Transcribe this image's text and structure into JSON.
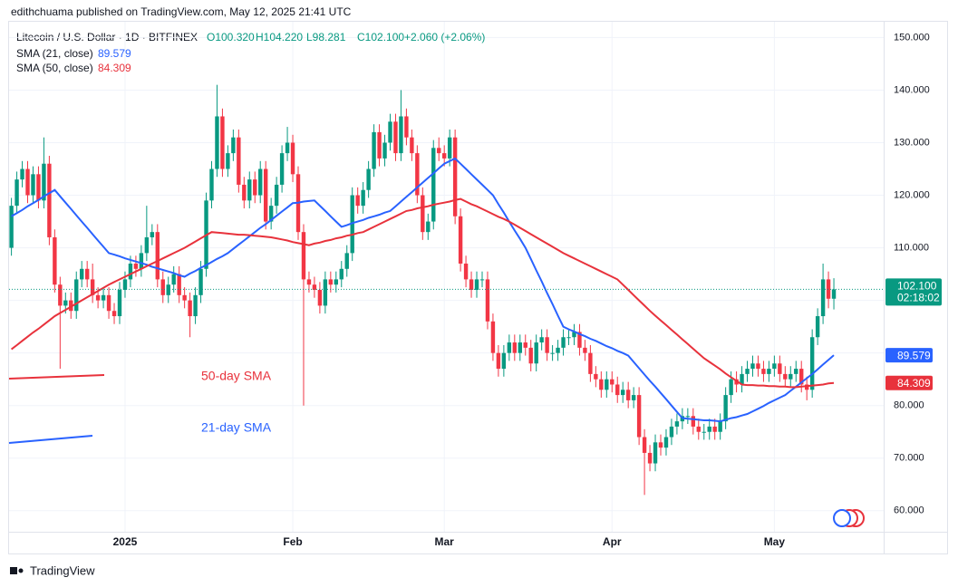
{
  "chart_data": {
    "type": "candlestick",
    "header": "edithchuama published on TradingView.com, May 12, 2025 21:41 UTC",
    "symbol": "Litecoin / U.S. Dollar · 1D · BITFINEX",
    "ohlc_labels": [
      "O100.320",
      "H104.220",
      "L98.281",
      "C102.100"
    ],
    "change": "+2.060 (+2.06%)",
    "last_price_label": "102.100",
    "countdown": "02:18:02",
    "annotations": [
      "50-day SMA",
      "21-day SMA"
    ],
    "footer": "TradingView",
    "up_color": "#089981",
    "down_color": "#f23645",
    "grid": true,
    "ylim": [
      56,
      153
    ],
    "yticks": [
      {
        "value": 150,
        "label": "150.000"
      },
      {
        "value": 140,
        "label": "140.000"
      },
      {
        "value": 130,
        "label": "130.000"
      },
      {
        "value": 120,
        "label": "120.000"
      },
      {
        "value": 110,
        "label": "110.000"
      },
      {
        "value": 100,
        "label": "100.000"
      },
      {
        "value": 90,
        "label": "90.000"
      },
      {
        "value": 80,
        "label": "80.000"
      },
      {
        "value": 70,
        "label": "70.000"
      },
      {
        "value": 60,
        "label": "60.000"
      }
    ],
    "categories": [
      null,
      null,
      null,
      null,
      null,
      null,
      null,
      null,
      null,
      null,
      null,
      null,
      null,
      null,
      null,
      null,
      null,
      null,
      null,
      null,
      null,
      "2025",
      null,
      null,
      null,
      null,
      null,
      null,
      null,
      null,
      null,
      null,
      null,
      null,
      null,
      null,
      null,
      null,
      null,
      null,
      null,
      null,
      null,
      null,
      null,
      null,
      null,
      null,
      null,
      null,
      null,
      null,
      "Feb",
      null,
      null,
      null,
      null,
      null,
      null,
      null,
      null,
      null,
      null,
      null,
      null,
      null,
      null,
      null,
      null,
      null,
      null,
      null,
      null,
      null,
      null,
      null,
      null,
      null,
      null,
      null,
      "Mar",
      null,
      null,
      null,
      null,
      null,
      null,
      null,
      null,
      null,
      null,
      null,
      null,
      null,
      null,
      null,
      null,
      null,
      null,
      null,
      null,
      null,
      null,
      null,
      null,
      null,
      null,
      null,
      null,
      null,
      null,
      "Apr",
      null,
      null,
      null,
      null,
      null,
      null,
      null,
      null,
      null,
      null,
      null,
      null,
      null,
      null,
      null,
      null,
      null,
      null,
      null,
      null,
      null,
      null,
      null,
      null,
      null,
      null,
      null,
      null,
      null,
      "May",
      null,
      null,
      null,
      null,
      null,
      null,
      null,
      null,
      null,
      null,
      null
    ],
    "candles": [
      [
        110,
        119.5,
        108.5,
        118
      ],
      [
        118,
        124.5,
        116.5,
        123
      ],
      [
        123,
        126.5,
        121.5,
        125
      ],
      [
        125,
        126.5,
        118.5,
        120
      ],
      [
        120,
        125.5,
        118.5,
        124
      ],
      [
        124,
        125.5,
        117.5,
        119
      ],
      [
        119,
        131,
        117.5,
        126
      ],
      [
        126,
        127.5,
        110.5,
        112
      ],
      [
        112,
        113.5,
        101.5,
        103
      ],
      [
        103,
        104.5,
        87,
        99
      ],
      [
        99,
        101.5,
        97.5,
        100
      ],
      [
        100,
        101.5,
        96.5,
        98
      ],
      [
        98,
        105.5,
        96.5,
        104
      ],
      [
        104,
        107.5,
        102.5,
        106
      ],
      [
        106,
        107.5,
        102.5,
        104
      ],
      [
        104,
        107,
        99.5,
        101
      ],
      [
        101,
        102.5,
        98.5,
        100
      ],
      [
        100,
        102.5,
        98.5,
        101
      ],
      [
        101,
        102.5,
        96.5,
        98
      ],
      [
        98,
        99.5,
        95.5,
        97
      ],
      [
        97,
        103.5,
        95.5,
        102
      ],
      [
        102,
        105.5,
        100.5,
        104
      ],
      [
        104,
        108.5,
        102.5,
        107
      ],
      [
        107,
        108.5,
        104.5,
        106
      ],
      [
        106,
        110.5,
        104.5,
        109
      ],
      [
        109,
        118,
        107.5,
        112
      ],
      [
        112,
        114.5,
        110.5,
        113
      ],
      [
        113,
        114.5,
        102.5,
        104
      ],
      [
        104,
        105.5,
        99.5,
        101
      ],
      [
        101,
        104.5,
        99.5,
        103
      ],
      [
        103,
        106.5,
        101.5,
        105
      ],
      [
        105,
        106.5,
        99.5,
        101
      ],
      [
        101,
        102.5,
        98.5,
        100
      ],
      [
        100,
        101.5,
        93,
        97
      ],
      [
        97,
        102.5,
        95.5,
        101
      ],
      [
        101,
        107.5,
        99.5,
        106
      ],
      [
        106,
        120.5,
        104.5,
        119
      ],
      [
        119,
        126.5,
        117.5,
        125
      ],
      [
        125,
        141,
        123.5,
        135
      ],
      [
        135,
        136.5,
        123.5,
        125
      ],
      [
        125,
        129.5,
        123.5,
        128
      ],
      [
        128,
        132.5,
        126.5,
        131
      ],
      [
        131,
        132.5,
        120.5,
        122
      ],
      [
        122,
        123.5,
        117.5,
        119
      ],
      [
        119,
        124.5,
        117.5,
        123
      ],
      [
        123,
        124.5,
        118.5,
        120
      ],
      [
        120,
        126.5,
        118.5,
        125
      ],
      [
        125,
        126.5,
        113.5,
        115
      ],
      [
        115,
        119.5,
        113.5,
        118
      ],
      [
        118,
        123.5,
        116.5,
        122
      ],
      [
        122,
        129.5,
        120.5,
        128
      ],
      [
        128,
        133,
        126.5,
        130
      ],
      [
        130,
        131.5,
        122.5,
        124
      ],
      [
        124,
        125.5,
        111.5,
        113
      ],
      [
        113,
        114.5,
        80,
        104
      ],
      [
        104,
        105.5,
        101.5,
        103
      ],
      [
        103,
        104.5,
        100.5,
        102
      ],
      [
        102,
        103.5,
        97.5,
        99
      ],
      [
        99,
        105.5,
        97.5,
        104
      ],
      [
        104,
        105.5,
        101.5,
        103
      ],
      [
        103,
        105.5,
        101.5,
        104
      ],
      [
        104,
        107.5,
        102.5,
        106
      ],
      [
        106,
        110.5,
        104.5,
        109
      ],
      [
        109,
        121.5,
        107.5,
        120
      ],
      [
        120,
        121.5,
        116.5,
        118
      ],
      [
        118,
        122.5,
        116.5,
        121
      ],
      [
        121,
        126.5,
        119.5,
        125
      ],
      [
        125,
        133.5,
        123.5,
        132
      ],
      [
        132,
        133.5,
        125.5,
        127
      ],
      [
        127,
        131.5,
        125.5,
        130
      ],
      [
        130,
        135.5,
        128.5,
        134
      ],
      [
        134,
        135.5,
        126.5,
        128
      ],
      [
        128,
        140,
        126.5,
        135
      ],
      [
        135,
        136.5,
        129.5,
        131
      ],
      [
        131,
        132.5,
        126.5,
        128
      ],
      [
        128,
        129.5,
        118.5,
        120
      ],
      [
        120,
        121.5,
        111.5,
        113
      ],
      [
        113,
        116.5,
        111.5,
        115
      ],
      [
        115,
        130.5,
        113.5,
        129
      ],
      [
        129,
        131,
        126.5,
        128
      ],
      [
        128,
        129.5,
        125.5,
        127
      ],
      [
        127,
        132.5,
        125.5,
        131
      ],
      [
        131,
        132.5,
        114.5,
        116
      ],
      [
        116,
        117.5,
        105.5,
        107
      ],
      [
        107,
        108.5,
        102.5,
        104
      ],
      [
        104,
        105.5,
        100.5,
        102
      ],
      [
        102,
        105.5,
        100.5,
        104
      ],
      [
        104,
        105.5,
        102.5,
        104
      ],
      [
        104,
        105.5,
        94.5,
        96
      ],
      [
        96,
        97.5,
        88.5,
        90
      ],
      [
        90,
        91.5,
        85.5,
        87
      ],
      [
        87,
        91.5,
        85.5,
        90
      ],
      [
        90,
        93.5,
        88.5,
        92
      ],
      [
        92,
        93.5,
        88.5,
        90
      ],
      [
        90,
        93.5,
        88.5,
        92
      ],
      [
        92,
        93.5,
        89.5,
        91
      ],
      [
        91,
        92.5,
        86.5,
        88
      ],
      [
        88,
        93.5,
        86.5,
        92
      ],
      [
        92,
        94.5,
        90.5,
        93
      ],
      [
        93,
        94.5,
        88.5,
        90
      ],
      [
        90,
        91.5,
        88.5,
        90
      ],
      [
        90,
        92.5,
        88.5,
        91
      ],
      [
        91,
        94.5,
        89.5,
        93
      ],
      [
        93,
        94.5,
        91.5,
        93
      ],
      [
        93,
        95.5,
        91.5,
        94
      ],
      [
        94,
        95.5,
        89.5,
        91
      ],
      [
        91,
        92.5,
        88.5,
        90
      ],
      [
        90,
        91.5,
        84.5,
        86
      ],
      [
        86,
        87.5,
        83.5,
        85
      ],
      [
        85,
        86.5,
        81.5,
        83
      ],
      [
        83,
        86.5,
        81.5,
        85
      ],
      [
        85,
        86.5,
        82.5,
        84
      ],
      [
        84,
        85.5,
        80.5,
        82
      ],
      [
        82,
        84.5,
        80.5,
        83
      ],
      [
        83,
        84.5,
        79.5,
        81
      ],
      [
        81,
        83.5,
        79.5,
        82
      ],
      [
        82,
        83.5,
        72.5,
        74
      ],
      [
        74,
        75.5,
        63,
        71
      ],
      [
        71,
        72.5,
        67.5,
        69
      ],
      [
        69,
        74.5,
        67.5,
        73
      ],
      [
        73,
        74.5,
        70.5,
        72
      ],
      [
        72,
        75.5,
        70.5,
        74
      ],
      [
        74,
        77.5,
        72.5,
        76
      ],
      [
        76,
        78.5,
        74.5,
        77
      ],
      [
        77,
        79.5,
        75.5,
        78
      ],
      [
        78,
        79.5,
        76.5,
        78
      ],
      [
        78,
        79.5,
        74.5,
        76
      ],
      [
        76,
        77.5,
        73.5,
        75
      ],
      [
        75,
        76.5,
        73.5,
        75
      ],
      [
        75,
        77.5,
        73.5,
        76
      ],
      [
        76,
        77.5,
        73.5,
        75
      ],
      [
        75,
        78.5,
        73.5,
        77
      ],
      [
        77,
        83.5,
        75.5,
        82
      ],
      [
        82,
        86.5,
        80.5,
        85
      ],
      [
        85,
        86.5,
        82.5,
        84
      ],
      [
        84,
        87.5,
        82.5,
        86
      ],
      [
        86,
        88.5,
        84.5,
        87
      ],
      [
        87,
        89.5,
        85.5,
        88
      ],
      [
        88,
        89.5,
        85.5,
        87
      ],
      [
        87,
        88.5,
        84.5,
        86
      ],
      [
        86,
        88.5,
        84.5,
        87
      ],
      [
        87,
        89.5,
        85.5,
        88
      ],
      [
        88,
        89.5,
        84.5,
        86
      ],
      [
        86,
        87.5,
        83.5,
        85
      ],
      [
        85,
        87.5,
        83.5,
        86
      ],
      [
        86,
        88.5,
        84.5,
        87
      ],
      [
        87,
        88.5,
        82.5,
        84
      ],
      [
        84,
        85.5,
        81,
        83
      ],
      [
        83,
        94.5,
        81.5,
        93
      ],
      [
        93,
        98.5,
        91.5,
        97
      ],
      [
        97,
        107,
        95.5,
        104
      ],
      [
        104,
        105.5,
        98.5,
        100.32
      ],
      [
        100.32,
        104.22,
        98.281,
        102.1
      ]
    ],
    "series": [
      {
        "name": "SMA (21, close)",
        "color": "#2962ff",
        "values": [
          116,
          116.6,
          117.2,
          117.9,
          118.5,
          119.1,
          119.8,
          120.4,
          121,
          119.8,
          118.6,
          117.4,
          116.2,
          115,
          113.8,
          112.6,
          111.4,
          110.2,
          109,
          108.7,
          108.4,
          108,
          107.7,
          107.4,
          107.1,
          106.8,
          106.4,
          106.1,
          105.8,
          105.5,
          105.2,
          104.8,
          104.5,
          105.1,
          105.6,
          106.2,
          106.7,
          107.3,
          107.9,
          108.4,
          109,
          109.8,
          110.6,
          111.4,
          112.2,
          113,
          113.8,
          114.5,
          115.3,
          116.1,
          116.9,
          117.7,
          118.5,
          118.6,
          118.8,
          118.9,
          119,
          118,
          117,
          116,
          115,
          114,
          114.3,
          114.7,
          115,
          115.3,
          115.7,
          116,
          116.3,
          116.7,
          117,
          117.9,
          118.8,
          119.7,
          120.6,
          121.5,
          122.4,
          123.3,
          124.2,
          125.1,
          126,
          126.5,
          127,
          126,
          125,
          124,
          123,
          122,
          121,
          120,
          118.3,
          116.7,
          115,
          113.3,
          111.7,
          110,
          107.9,
          105.7,
          103.6,
          101.4,
          99.3,
          97.1,
          95,
          94.5,
          94.1,
          93.6,
          93.2,
          92.7,
          92.3,
          91.8,
          91.3,
          90.9,
          90.4,
          90,
          89.5,
          88.3,
          87.1,
          85.9,
          84.7,
          83.6,
          82.4,
          81.2,
          80,
          78.8,
          77.6,
          77.5,
          77.4,
          77.3,
          77.2,
          77.2,
          77.1,
          77,
          77.3,
          77.6,
          77.8,
          78.1,
          78.4,
          78.9,
          79.4,
          79.9,
          80.5,
          81,
          81.5,
          82,
          82.8,
          83.6,
          84.4,
          85.2,
          86,
          86.9,
          87.8,
          88.7,
          89.579
        ]
      },
      {
        "name": "SMA (50, close)",
        "color": "#e8323c",
        "values": [
          90.7,
          91.5,
          92.3,
          93.1,
          93.9,
          94.6,
          95.4,
          96.2,
          97,
          97.6,
          98.2,
          98.8,
          99.4,
          100,
          100.6,
          101.2,
          101.8,
          102.4,
          103,
          103.5,
          104,
          104.5,
          105,
          105.5,
          106,
          106.5,
          107,
          107.5,
          108,
          108.5,
          109,
          109.5,
          110,
          110.6,
          111.2,
          111.8,
          112.4,
          113,
          112.9,
          112.8,
          112.7,
          112.6,
          112.5,
          112.5,
          112.4,
          112.3,
          112.2,
          112.1,
          112,
          111.8,
          111.6,
          111.4,
          111.1,
          110.9,
          110.7,
          110.5,
          110.8,
          111,
          111.3,
          111.5,
          111.8,
          112,
          112.3,
          112.5,
          112.8,
          113,
          113.5,
          114,
          114.5,
          115,
          115.5,
          116,
          116.5,
          117,
          117.2,
          117.5,
          117.7,
          117.9,
          118.2,
          118.4,
          118.6,
          118.8,
          119.1,
          119.3,
          118.8,
          118.3,
          117.9,
          117.4,
          116.9,
          116.4,
          115.9,
          115.5,
          115,
          114.4,
          113.8,
          113.2,
          112.6,
          112,
          111.4,
          110.8,
          110.2,
          109.6,
          109,
          108.5,
          108,
          107.5,
          107,
          106.5,
          106,
          105.5,
          105,
          104.5,
          104,
          103,
          102,
          101,
          100,
          99,
          98,
          97.1,
          96.2,
          95.3,
          94.4,
          93.5,
          92.6,
          91.7,
          90.8,
          89.9,
          89,
          88.3,
          87.6,
          86.9,
          86.1,
          85.4,
          84.7,
          84,
          83.9,
          83.9,
          83.8,
          83.8,
          83.7,
          83.7,
          83.6,
          83.6,
          83.5,
          83.5,
          83.6,
          83.7,
          83.8,
          83.9,
          84,
          84.2,
          84.309
        ]
      }
    ]
  }
}
